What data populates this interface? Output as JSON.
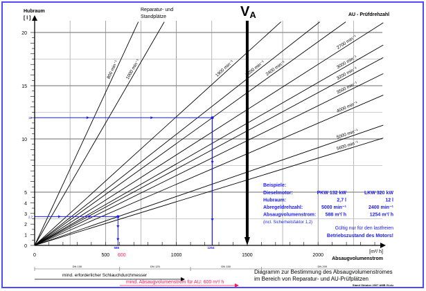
{
  "colors": {
    "frame": "#4a4aff",
    "example": "#1a1aff",
    "highlight": "#ff1a55",
    "line": "#000000",
    "grid": "#9a9a9a"
  },
  "y_axis": {
    "title": "Hubraum",
    "unit": "[ l ]",
    "ticks": [
      "0",
      "1",
      "2",
      "3",
      "4",
      "5",
      "10",
      "15",
      "20"
    ]
  },
  "x_axis": {
    "unit": "[m³/ h]",
    "title": "Absaugvolumenstrom",
    "ticks": [
      "0",
      "500",
      "1000",
      "1500",
      "2000"
    ],
    "highlight_tick": "600"
  },
  "groups": {
    "repair": [
      "Reparatur-  und",
      "Standplätze"
    ],
    "au": "AU - Prüfdrehzahl"
  },
  "va_label": {
    "main": "V",
    "sub": "A"
  },
  "chart_data": {
    "type": "line",
    "title": "Diagramm zur Bestimmung des Absaugvolumenstromes im Bereich von Reparatur- und AU-Prüfplätzen",
    "xlabel": "Absaugvolumenstrom [m³/h]",
    "ylabel": "Hubraum [l]",
    "xlim": [
      0,
      2460
    ],
    "ylim": [
      0,
      21
    ],
    "factor_m3h_per_l_rpm": 0.04356,
    "series": [
      {
        "rpm": 800,
        "label": "800 min⁻¹",
        "group": "repair"
      },
      {
        "rpm": 1000,
        "label": "1000 min⁻¹",
        "group": "repair"
      },
      {
        "rpm": 1900,
        "label": "1900 min⁻¹",
        "group": "au"
      },
      {
        "rpm": 2200,
        "label": "2200 min⁻¹",
        "group": "au"
      },
      {
        "rpm": 2400,
        "label": "2400 min⁻¹",
        "group": "au"
      },
      {
        "rpm": 2700,
        "label": "2700 min⁻¹",
        "group": "au"
      },
      {
        "rpm": 3000,
        "label": "3000 min⁻¹",
        "group": "au"
      },
      {
        "rpm": 3200,
        "label": "3200 min⁻¹",
        "group": "au"
      },
      {
        "rpm": 3500,
        "label": "3500 min⁻¹",
        "group": "au"
      },
      {
        "rpm": 4000,
        "label": "4000 min⁻¹",
        "group": "au"
      },
      {
        "rpm": 5000,
        "label": "5000 min⁻¹",
        "group": "au"
      },
      {
        "rpm": 5600,
        "label": "5600 min⁻¹",
        "group": "au"
      }
    ],
    "va_value": 1500,
    "examples": [
      {
        "hubraum": 2.7,
        "hubraum_label": "2,7",
        "flow": 588,
        "flow_label": "588"
      },
      {
        "hubraum": 12,
        "hubraum_label": "12",
        "flow": 1254,
        "flow_label": "1254"
      }
    ],
    "dn_ranges": [
      {
        "label": "DN 100",
        "from": 0,
        "to": 600
      },
      {
        "label": "DN 125",
        "from": 600,
        "to": 1100
      },
      {
        "label": "DN 150",
        "from": 1100,
        "to": 1600
      },
      {
        "label": "DN 200",
        "from": 1600,
        "to": 2460
      }
    ]
  },
  "example_box": {
    "heading": "Beispiele:",
    "rows": [
      {
        "label": "Dieselmotor:",
        "pkw": "PKW 132 kW",
        "lkw": "LKW 320 kW"
      },
      {
        "label": "Hubraum:",
        "pkw": "2,7 l",
        "lkw": "12 l"
      },
      {
        "label": "Abregeldrehzahl:",
        "pkw": "5000 min⁻¹",
        "lkw": "2400 min⁻¹"
      },
      {
        "label": "Absaugvolumenstrom:",
        "pkw": "588 m³/ h",
        "lkw": "1254 m³/ h"
      }
    ],
    "note": "(incl. Sicherheitsfaktor 1,2)",
    "validity_1": "Gültig nur für den lastfreien",
    "validity_2": "Betriebszustand des Motors!"
  },
  "footer": {
    "hose_label": "mind. erforderlicher Schlauchdurchmesser",
    "min_flow_label": "mind. Absaugvolumenstrom für AU: 600 m³/ h",
    "title_1": "Diagramm zur Bestimmung des Absaugvolumenstromes",
    "title_2": "im Bereich von Reparatur-  und AU-Prüfplätzen",
    "stand": "Stand Oktober 2007 AMB GLdu"
  }
}
